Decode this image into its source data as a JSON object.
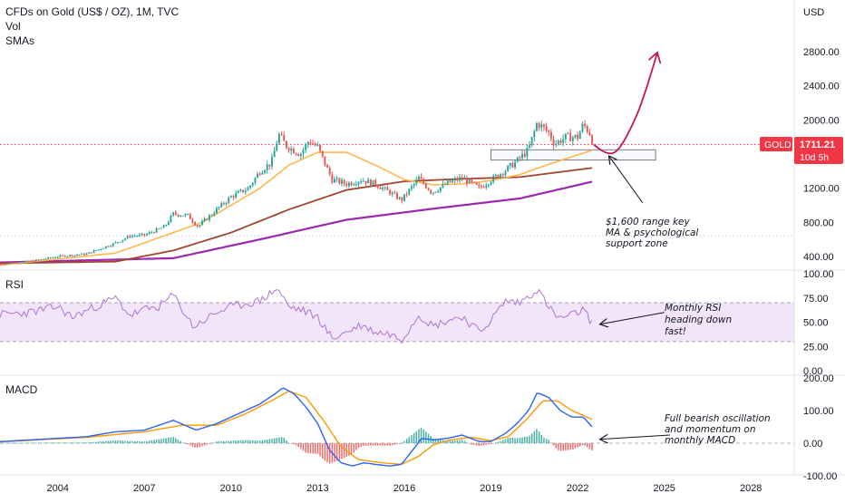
{
  "header": {
    "title": "CFDs on Gold (US$ / OZ), 1M, TVC",
    "vol_label": "Vol",
    "smas_label": "SMAs"
  },
  "price_axis": {
    "unit": "USD",
    "ticks": [
      "2800.00",
      "2400.00",
      "2000.00",
      "1200.00",
      "800.00",
      "400.00"
    ],
    "tick_values": [
      2800,
      2400,
      2000,
      1200,
      800,
      400
    ]
  },
  "price_badge": {
    "symbol": "GOLD",
    "value": "1711.21",
    "countdown": "10d 5h",
    "color": "#f23645"
  },
  "rsi_pane": {
    "label": "RSI",
    "ticks": [
      "100.00",
      "75.00",
      "50.00",
      "25.00",
      "0.00"
    ],
    "tick_values": [
      100,
      75,
      50,
      25,
      0
    ],
    "band": [
      30,
      70
    ]
  },
  "macd_pane": {
    "label": "MACD",
    "ticks": [
      "200.00",
      "100.00",
      "0.00",
      "-100.00"
    ],
    "tick_values": [
      200,
      100,
      0,
      -100
    ]
  },
  "time_axis": {
    "ticks": [
      "2004",
      "2007",
      "2010",
      "2013",
      "2016",
      "2019",
      "2022",
      "2025",
      "2028"
    ],
    "tick_years": [
      2004,
      2007,
      2010,
      2013,
      2016,
      2019,
      2022,
      2025,
      2028
    ]
  },
  "annotations": {
    "support": [
      "$1,600 range key",
      "MA & psychological",
      "support zone"
    ],
    "rsi": [
      "Monthly RSI",
      "heading down",
      "fast!"
    ],
    "macd": [
      "Full bearish oscillation",
      "and momentum on",
      "monthly MACD"
    ]
  },
  "colors": {
    "up_candle": "#26a69a",
    "down_candle": "#ef5350",
    "sma_short": "#ffb74d",
    "sma_mid": "#a0452e",
    "sma_long": "#9c27b0",
    "rsi_line": "#b073d6",
    "rsi_band": "#eedbf7",
    "macd_line": "#2962ff",
    "signal_line": "#ff9800",
    "projection": "#c2185b"
  },
  "chart_data": {
    "type": "line",
    "x_range": [
      2002,
      2029.5
    ],
    "price_range": [
      300,
      3150
    ],
    "price_anchors": [
      [
        2002.0,
        310
      ],
      [
        2003.0,
        340
      ],
      [
        2004.0,
        400
      ],
      [
        2005.0,
        430
      ],
      [
        2006.0,
        560
      ],
      [
        2006.5,
        640
      ],
      [
        2007.0,
        650
      ],
      [
        2007.7,
        750
      ],
      [
        2008.0,
        900
      ],
      [
        2008.5,
        880
      ],
      [
        2008.85,
        750
      ],
      [
        2009.5,
        950
      ],
      [
        2010.0,
        1100
      ],
      [
        2010.6,
        1200
      ],
      [
        2011.0,
        1400
      ],
      [
        2011.4,
        1500
      ],
      [
        2011.65,
        1830
      ],
      [
        2011.9,
        1700
      ],
      [
        2012.4,
        1600
      ],
      [
        2012.7,
        1760
      ],
      [
        2013.0,
        1680
      ],
      [
        2013.3,
        1450
      ],
      [
        2013.5,
        1300
      ],
      [
        2014.0,
        1250
      ],
      [
        2014.5,
        1300
      ],
      [
        2015.0,
        1250
      ],
      [
        2015.5,
        1150
      ],
      [
        2015.9,
        1060
      ],
      [
        2016.5,
        1320
      ],
      [
        2016.95,
        1150
      ],
      [
        2017.5,
        1260
      ],
      [
        2018.0,
        1320
      ],
      [
        2018.6,
        1200
      ],
      [
        2019.0,
        1300
      ],
      [
        2019.5,
        1410
      ],
      [
        2019.9,
        1520
      ],
      [
        2020.3,
        1650
      ],
      [
        2020.6,
        1970
      ],
      [
        2021.0,
        1850
      ],
      [
        2021.2,
        1720
      ],
      [
        2021.6,
        1800
      ],
      [
        2022.0,
        1800
      ],
      [
        2022.2,
        1950
      ],
      [
        2022.45,
        1830
      ],
      [
        2022.55,
        1711
      ]
    ],
    "sma_short_anchors": [
      [
        2002.0,
        300
      ],
      [
        2006.0,
        440
      ],
      [
        2009.0,
        800
      ],
      [
        2011.0,
        1200
      ],
      [
        2012.0,
        1470
      ],
      [
        2013.0,
        1620
      ],
      [
        2014.0,
        1620
      ],
      [
        2015.0,
        1470
      ],
      [
        2016.0,
        1300
      ],
      [
        2017.0,
        1240
      ],
      [
        2018.0,
        1250
      ],
      [
        2019.0,
        1290
      ],
      [
        2020.0,
        1360
      ],
      [
        2021.0,
        1480
      ],
      [
        2022.55,
        1650
      ]
    ],
    "sma_mid_anchors": [
      [
        2002.0,
        320
      ],
      [
        2006.0,
        340
      ],
      [
        2008.0,
        470
      ],
      [
        2010.0,
        680
      ],
      [
        2012.0,
        950
      ],
      [
        2014.0,
        1180
      ],
      [
        2016.0,
        1280
      ],
      [
        2018.0,
        1310
      ],
      [
        2020.0,
        1330
      ],
      [
        2022.55,
        1440
      ]
    ],
    "sma_long_anchors": [
      [
        2002.0,
        330
      ],
      [
        2008.0,
        380
      ],
      [
        2011.0,
        600
      ],
      [
        2014.0,
        830
      ],
      [
        2017.0,
        960
      ],
      [
        2020.0,
        1080
      ],
      [
        2022.55,
        1280
      ]
    ],
    "support_zone": {
      "x": [
        2019.0,
        2024.7
      ],
      "price": [
        1530,
        1650
      ]
    },
    "reference_prices": [
      1711,
      640
    ],
    "projection": [
      [
        2022.55,
        1711
      ],
      [
        2023.0,
        1600
      ],
      [
        2023.4,
        1620
      ],
      [
        2024.0,
        2000
      ],
      [
        2024.4,
        2380
      ],
      [
        2024.75,
        2780
      ]
    ],
    "arrow_callouts": [
      {
        "from": [
          2024.25,
          1030
        ],
        "to": [
          2023.1,
          1570
        ]
      },
      {
        "from_rsi": [
          2025.0,
          60
        ],
        "to_rsi": [
          2022.8,
          48
        ]
      },
      {
        "from_macd": [
          2025.2,
          25
        ],
        "to_macd": [
          2022.8,
          12
        ]
      }
    ],
    "rsi_anchors": [
      [
        2002.0,
        58
      ],
      [
        2003.0,
        60
      ],
      [
        2004.0,
        66
      ],
      [
        2004.5,
        55
      ],
      [
        2005.0,
        62
      ],
      [
        2006.0,
        75
      ],
      [
        2006.5,
        57
      ],
      [
        2007.0,
        63
      ],
      [
        2007.5,
        66
      ],
      [
        2008.0,
        78
      ],
      [
        2008.7,
        45
      ],
      [
        2009.5,
        60
      ],
      [
        2010.0,
        66
      ],
      [
        2011.0,
        72
      ],
      [
        2011.6,
        85
      ],
      [
        2012.0,
        66
      ],
      [
        2012.5,
        62
      ],
      [
        2013.0,
        55
      ],
      [
        2013.5,
        33
      ],
      [
        2014.0,
        40
      ],
      [
        2014.5,
        47
      ],
      [
        2015.0,
        40
      ],
      [
        2015.5,
        38
      ],
      [
        2015.9,
        32
      ],
      [
        2016.5,
        58
      ],
      [
        2017.0,
        46
      ],
      [
        2017.5,
        52
      ],
      [
        2018.0,
        56
      ],
      [
        2018.6,
        40
      ],
      [
        2019.0,
        52
      ],
      [
        2019.5,
        72
      ],
      [
        2020.0,
        70
      ],
      [
        2020.6,
        84
      ],
      [
        2021.0,
        66
      ],
      [
        2021.3,
        54
      ],
      [
        2021.7,
        56
      ],
      [
        2022.0,
        60
      ],
      [
        2022.2,
        63
      ],
      [
        2022.55,
        47
      ]
    ],
    "macd_anchors": [
      [
        2002.0,
        5
      ],
      [
        2004.0,
        15
      ],
      [
        2005.0,
        20
      ],
      [
        2006.0,
        35
      ],
      [
        2007.0,
        40
      ],
      [
        2008.0,
        70
      ],
      [
        2008.8,
        40
      ],
      [
        2009.5,
        60
      ],
      [
        2010.0,
        80
      ],
      [
        2010.5,
        100
      ],
      [
        2011.0,
        120
      ],
      [
        2011.5,
        150
      ],
      [
        2011.8,
        170
      ],
      [
        2012.2,
        150
      ],
      [
        2012.6,
        110
      ],
      [
        2013.0,
        60
      ],
      [
        2013.4,
        -20
      ],
      [
        2013.8,
        -60
      ],
      [
        2014.2,
        -70
      ],
      [
        2014.6,
        -60
      ],
      [
        2015.0,
        -65
      ],
      [
        2015.5,
        -70
      ],
      [
        2015.9,
        -65
      ],
      [
        2016.3,
        -20
      ],
      [
        2016.6,
        15
      ],
      [
        2017.0,
        10
      ],
      [
        2017.5,
        15
      ],
      [
        2018.0,
        25
      ],
      [
        2018.6,
        5
      ],
      [
        2019.0,
        5
      ],
      [
        2019.5,
        30
      ],
      [
        2019.9,
        60
      ],
      [
        2020.3,
        100
      ],
      [
        2020.6,
        155
      ],
      [
        2021.0,
        140
      ],
      [
        2021.4,
        100
      ],
      [
        2021.8,
        80
      ],
      [
        2022.2,
        80
      ],
      [
        2022.55,
        45
      ]
    ],
    "signal_anchors": [
      [
        2002.0,
        4
      ],
      [
        2005.0,
        18
      ],
      [
        2007.0,
        35
      ],
      [
        2008.3,
        55
      ],
      [
        2009.5,
        55
      ],
      [
        2010.5,
        90
      ],
      [
        2011.5,
        135
      ],
      [
        2012.0,
        160
      ],
      [
        2012.6,
        140
      ],
      [
        2013.2,
        70
      ],
      [
        2013.8,
        -10
      ],
      [
        2014.4,
        -50
      ],
      [
        2015.2,
        -60
      ],
      [
        2015.9,
        -65
      ],
      [
        2016.5,
        -40
      ],
      [
        2017.0,
        -5
      ],
      [
        2017.6,
        10
      ],
      [
        2018.3,
        18
      ],
      [
        2019.0,
        8
      ],
      [
        2019.6,
        20
      ],
      [
        2020.2,
        70
      ],
      [
        2020.8,
        130
      ],
      [
        2021.3,
        130
      ],
      [
        2021.8,
        100
      ],
      [
        2022.2,
        85
      ],
      [
        2022.55,
        70
      ]
    ]
  }
}
